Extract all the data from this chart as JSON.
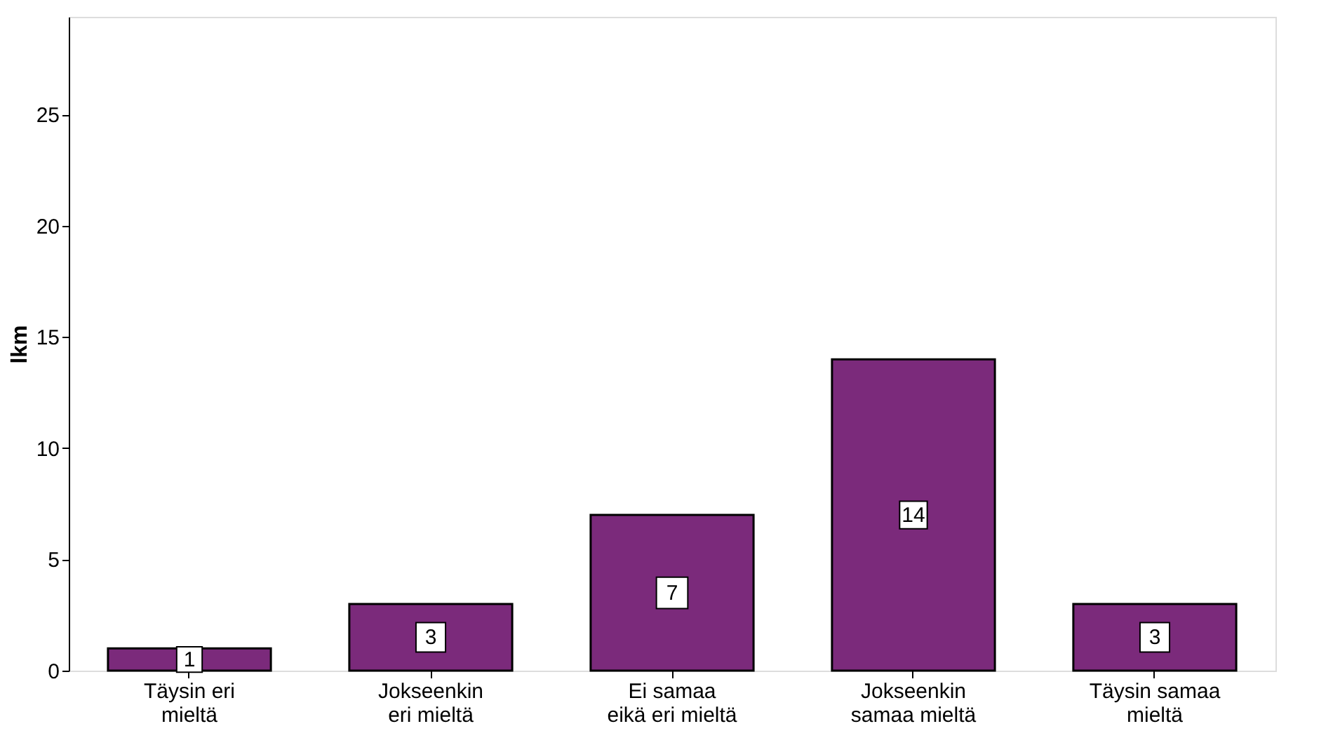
{
  "chart_data": {
    "type": "bar",
    "ylabel": "lkm",
    "categories": [
      "Täysin eri\nmieltä",
      "Jokseenkin\neri mieltä",
      "Ei samaa\neikä eri mieltä",
      "Jokseenkin\nsamaa mieltä",
      "Täysin samaa\nmieltä"
    ],
    "values": [
      1,
      3,
      7,
      14,
      3
    ],
    "color": "#7b2a7b",
    "ylim": [
      0,
      29.4
    ],
    "yticks": [
      0,
      5,
      10,
      15,
      20,
      25
    ],
    "grid": false,
    "data_labels": true
  }
}
